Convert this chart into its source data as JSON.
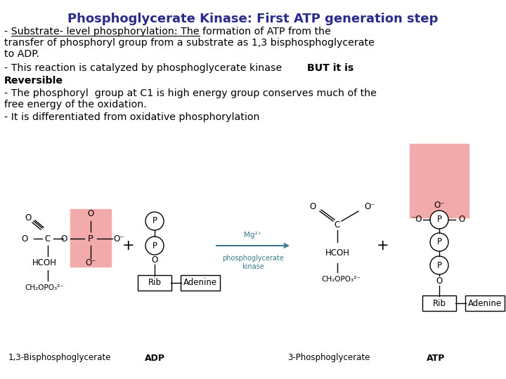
{
  "title": "Phosphoglycerate Kinase: First ATP generation step",
  "title_color": "#2b2b8a",
  "title_fontsize": 13,
  "bg_color": "#ffffff",
  "pink_color": "#f2aaaa",
  "arrow_color": "#3a7a8a",
  "struct_color": "#000000",
  "label_13BPG": "1,3-Bisphosphoglycerate",
  "label_ADP": "ADP",
  "label_3PG": "3-Phosphoglycerate",
  "label_ATP": "ATP",
  "label_mg": "Mg²⁺",
  "label_enzyme": "phosphoglycerate\nkinase"
}
